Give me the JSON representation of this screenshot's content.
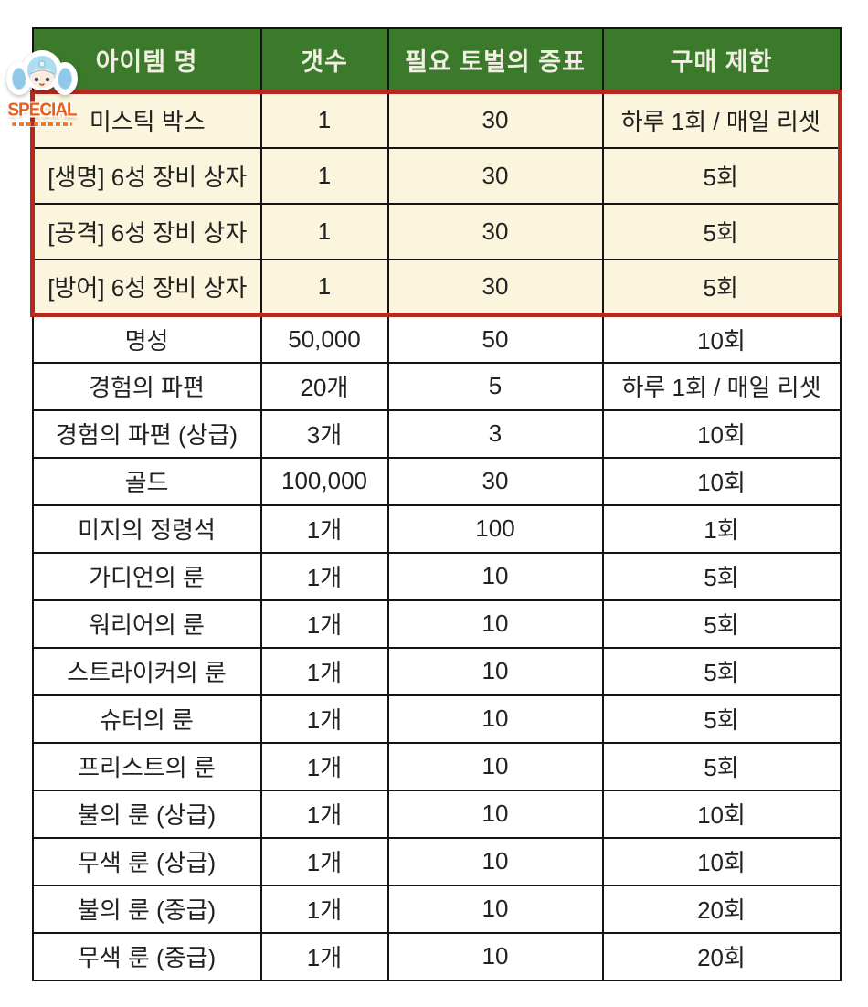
{
  "sticker": {
    "label": "SPECIAL",
    "accent_color": "#E8611C",
    "icon": "anime-girl-icon"
  },
  "table": {
    "headers": [
      "아이템 명",
      "갯수",
      "필요 토벌의 증표",
      "구매 제한"
    ],
    "colors": {
      "header_bg": "#3B7A2B",
      "header_text": "#F1EFE2",
      "special_row_bg": "#FAF5DC",
      "special_frame": "#B22A20",
      "grid_line": "#141414",
      "body_text": "#212121"
    },
    "rows": [
      {
        "item": "미스틱 박스",
        "qty": "1",
        "tokens": "30",
        "limit": "하루 1회 / 매일 리셋",
        "special": true
      },
      {
        "item": "[생명] 6성 장비 상자",
        "qty": "1",
        "tokens": "30",
        "limit": "5회",
        "special": true
      },
      {
        "item": "[공격] 6성 장비 상자",
        "qty": "1",
        "tokens": "30",
        "limit": "5회",
        "special": true
      },
      {
        "item": "[방어] 6성 장비 상자",
        "qty": "1",
        "tokens": "30",
        "limit": "5회",
        "special": true
      },
      {
        "item": "명성",
        "qty": "50,000",
        "tokens": "50",
        "limit": "10회",
        "special": false
      },
      {
        "item": "경험의 파편",
        "qty": "20개",
        "tokens": "5",
        "limit": "하루 1회 / 매일 리셋",
        "special": false
      },
      {
        "item": "경험의 파편 (상급)",
        "qty": "3개",
        "tokens": "3",
        "limit": "10회",
        "special": false
      },
      {
        "item": "골드",
        "qty": "100,000",
        "tokens": "30",
        "limit": "10회",
        "special": false
      },
      {
        "item": "미지의 정령석",
        "qty": "1개",
        "tokens": "100",
        "limit": "1회",
        "special": false
      },
      {
        "item": "가디언의 룬",
        "qty": "1개",
        "tokens": "10",
        "limit": "5회",
        "special": false
      },
      {
        "item": "워리어의 룬",
        "qty": "1개",
        "tokens": "10",
        "limit": "5회",
        "special": false
      },
      {
        "item": "스트라이커의 룬",
        "qty": "1개",
        "tokens": "10",
        "limit": "5회",
        "special": false
      },
      {
        "item": "슈터의 룬",
        "qty": "1개",
        "tokens": "10",
        "limit": "5회",
        "special": false
      },
      {
        "item": "프리스트의 룬",
        "qty": "1개",
        "tokens": "10",
        "limit": "5회",
        "special": false
      },
      {
        "item": "불의 룬 (상급)",
        "qty": "1개",
        "tokens": "10",
        "limit": "10회",
        "special": false
      },
      {
        "item": "무색 룬 (상급)",
        "qty": "1개",
        "tokens": "10",
        "limit": "10회",
        "special": false
      },
      {
        "item": "불의 룬 (중급)",
        "qty": "1개",
        "tokens": "10",
        "limit": "20회",
        "special": false
      },
      {
        "item": "무색 룬 (중급)",
        "qty": "1개",
        "tokens": "10",
        "limit": "20회",
        "special": false
      }
    ]
  }
}
